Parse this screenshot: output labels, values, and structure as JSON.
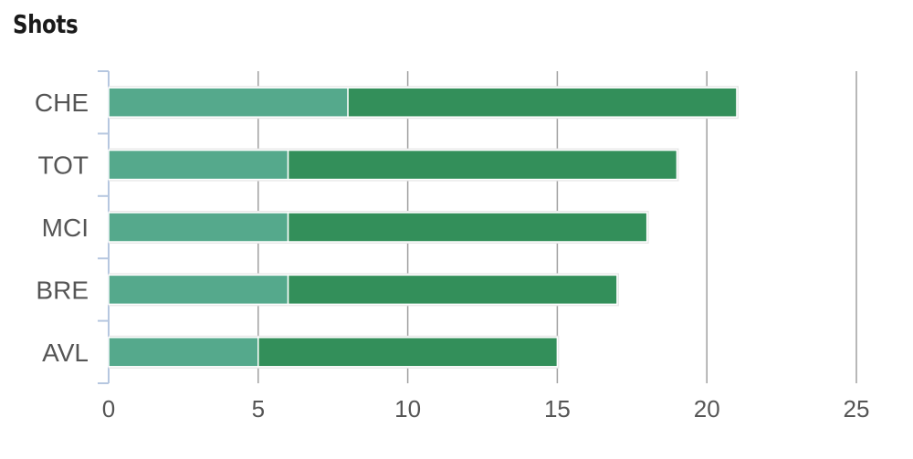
{
  "title": "Shots",
  "chart_data": {
    "type": "bar",
    "orientation": "horizontal",
    "stacked": true,
    "title": "Shots",
    "categories": [
      "CHE",
      "TOT",
      "MCI",
      "BRE",
      "AVL"
    ],
    "series": [
      {
        "values": [
          8,
          6,
          6,
          6,
          5
        ],
        "color": "#55a98c"
      },
      {
        "values": [
          13,
          13,
          12,
          11,
          10
        ],
        "color": "#338f5a"
      }
    ],
    "xlim": [
      0,
      25
    ],
    "xticks": [
      "0",
      "5",
      "10",
      "15",
      "20",
      "25"
    ],
    "grid": true,
    "legend": "none"
  }
}
